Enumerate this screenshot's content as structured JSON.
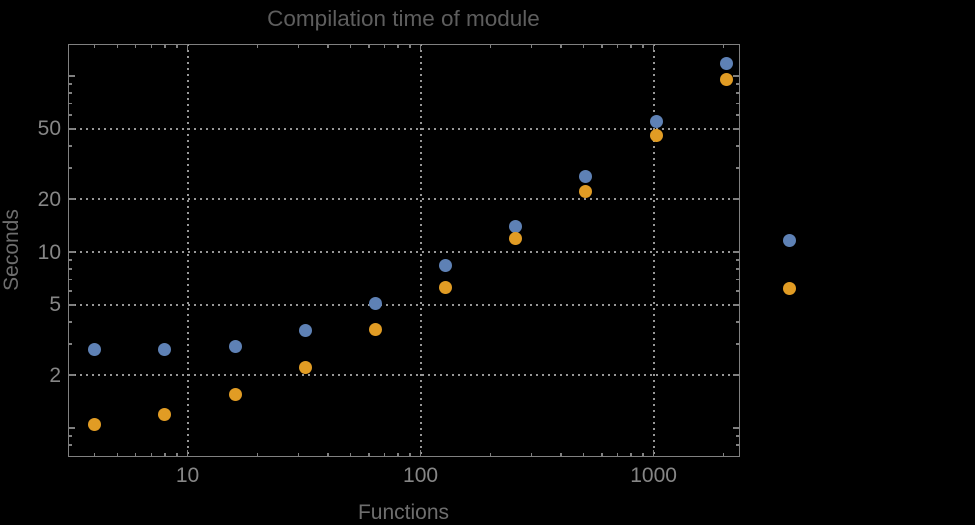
{
  "chart_data": {
    "type": "scatter",
    "title": "Compilation time of module",
    "xlabel": "Functions",
    "ylabel": "Seconds",
    "x_scale": "log",
    "y_scale": "log",
    "x": [
      4,
      8,
      16,
      32,
      64,
      128,
      256,
      512,
      1024,
      2048
    ],
    "series": [
      {
        "name": "series-1-blue",
        "color": "#5E81B5",
        "values": [
          2.8,
          2.8,
          2.9,
          3.6,
          5.1,
          8.4,
          14,
          27,
          55,
          118
        ]
      },
      {
        "name": "series-2-orange",
        "color": "#E19C24",
        "values": [
          1.05,
          1.2,
          1.55,
          2.2,
          3.65,
          6.3,
          12,
          22,
          46,
          96
        ]
      }
    ],
    "x_ticks": [
      10,
      100,
      1000
    ],
    "x_tick_labels": [
      "10",
      "100",
      "1000"
    ],
    "y_ticks": [
      2,
      5,
      10,
      20,
      50
    ],
    "y_tick_labels": [
      "2",
      "5",
      "10",
      "20",
      "50"
    ],
    "y_unlabeled_major_ticks": [
      1,
      100
    ],
    "xlim": [
      3.1,
      2330
    ],
    "ylim": [
      0.68,
      154
    ],
    "grid": "dotted lines at labeled ticks only",
    "legend_position": "outside right, markers only (no visible text)"
  },
  "legend": {
    "markers": [
      {
        "name": "series-1-blue",
        "color": "#5E81B5"
      },
      {
        "name": "series-2-orange",
        "color": "#E19C24"
      }
    ]
  },
  "colors": {
    "background": "#000000",
    "frame": "#808080",
    "grid": "#979797",
    "tick_label": "#868686",
    "axis_label": "#6e6e6e",
    "title": "#5e5e5e",
    "series1": "#5E81B5",
    "series2": "#E19C24"
  }
}
